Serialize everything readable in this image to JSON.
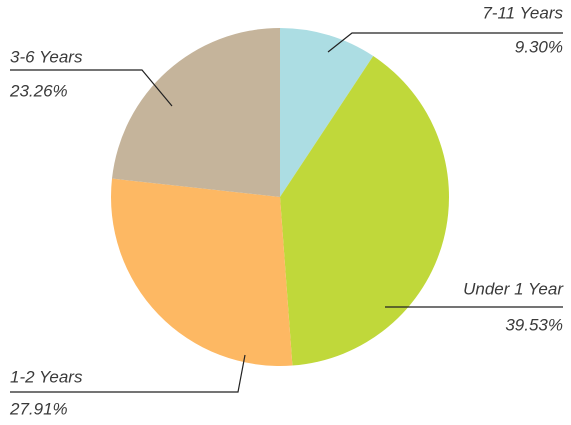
{
  "chart_data": {
    "type": "pie",
    "categories": [
      "7-11 Years",
      "Under 1 Year",
      "1-2 Years",
      "3-6 Years"
    ],
    "values": [
      9.3,
      39.53,
      27.91,
      23.26
    ],
    "value_labels": [
      "9.30%",
      "39.53%",
      "27.91%",
      "23.26%"
    ],
    "colors": [
      "#acdde3",
      "#c0d83a",
      "#fdb863",
      "#c5b49b"
    ]
  }
}
